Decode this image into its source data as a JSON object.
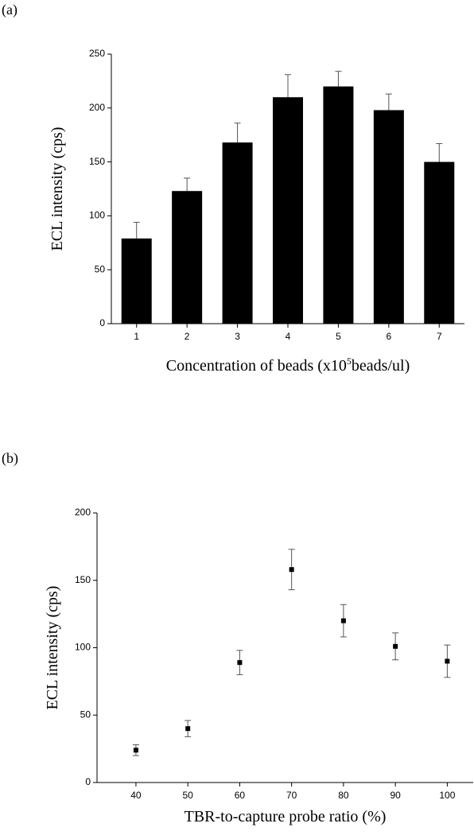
{
  "chart_data": [
    {
      "type": "bar",
      "panel_label": "(a)",
      "y_label": "ECL intensity (cps)",
      "x_label": [
        "Concentration of beads (x10",
        "5",
        "beads/ul)"
      ],
      "categories": [
        "1",
        "2",
        "3",
        "4",
        "5",
        "6",
        "7"
      ],
      "values": [
        79,
        123,
        168,
        210,
        220,
        198,
        150
      ],
      "errors": [
        15,
        12,
        18,
        21,
        14,
        15,
        17
      ],
      "color": "#000000",
      "ylim": [
        0,
        250
      ],
      "yticks": [
        0,
        50,
        100,
        150,
        200,
        250
      ]
    },
    {
      "type": "scatter",
      "panel_label": "(b)",
      "y_label": "ECL intensity (cps)",
      "x_label": "TBR-to-capture probe ratio (%)",
      "x": [
        40,
        50,
        60,
        70,
        80,
        90,
        100
      ],
      "values": [
        24,
        40,
        89,
        158,
        120,
        101,
        90
      ],
      "errors": [
        4,
        6,
        9,
        15,
        12,
        10,
        12
      ],
      "color": "#000000",
      "xlim": [
        32.5,
        105
      ],
      "xticks": [
        40,
        50,
        60,
        70,
        80,
        90,
        100
      ],
      "ylim": [
        0,
        200
      ],
      "yticks": [
        0,
        50,
        100,
        150,
        200
      ]
    }
  ]
}
